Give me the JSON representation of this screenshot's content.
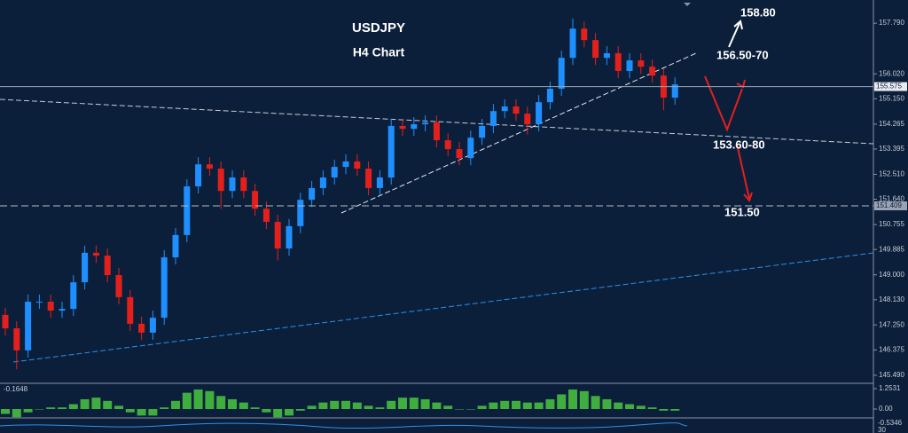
{
  "chart_data": [
    {
      "type": "candlestick",
      "title": "USDJPY",
      "subtitle": "H4 Chart",
      "annotations": [
        "158.80",
        "156.50-70",
        "153.60-80",
        "151.50"
      ],
      "open": [
        147.6,
        147.13,
        146.36,
        148.06,
        148.06,
        147.75,
        147.81,
        148.74,
        149.77,
        149.67,
        148.99,
        148.22,
        147.29,
        146.98,
        147.5,
        149.61,
        150.39,
        152.09,
        152.86,
        152.71,
        151.93,
        152.4,
        151.93,
        151.31,
        150.85,
        149.92,
        150.7,
        151.62,
        152.03,
        152.4,
        152.77,
        152.96,
        152.71,
        152.03,
        152.4,
        154.2,
        154.1,
        154.26,
        154.32,
        153.7,
        153.39,
        153.08,
        153.79,
        154.2,
        154.72,
        154.88,
        154.63,
        154.26,
        155.03,
        155.5,
        156.58,
        157.6,
        157.2,
        156.58,
        156.74,
        156.12,
        156.49,
        156.27,
        155.96,
        155.19
      ],
      "high": [
        147.85,
        147.38,
        148.31,
        148.31,
        148.31,
        148.06,
        148.99,
        150.02,
        150.02,
        149.92,
        149.24,
        148.47,
        147.54,
        147.75,
        149.86,
        150.64,
        152.34,
        153.11,
        153.11,
        152.96,
        152.65,
        152.65,
        152.18,
        151.56,
        151.1,
        150.95,
        151.87,
        152.28,
        152.65,
        153.02,
        153.21,
        153.21,
        152.96,
        152.65,
        154.45,
        154.45,
        154.51,
        154.57,
        154.57,
        153.95,
        153.64,
        154.04,
        154.45,
        154.97,
        155.13,
        155.13,
        154.88,
        155.28,
        155.75,
        156.83,
        157.95,
        157.85,
        157.45,
        156.99,
        156.99,
        156.74,
        156.74,
        156.52,
        156.21,
        155.9
      ],
      "low": [
        146.88,
        145.7,
        146.11,
        147.81,
        147.5,
        147.5,
        147.56,
        148.49,
        149.42,
        148.74,
        147.97,
        147.04,
        146.73,
        146.73,
        147.25,
        149.36,
        150.14,
        151.84,
        152.46,
        151.3,
        151.68,
        151.68,
        151.06,
        150.6,
        149.5,
        149.67,
        150.45,
        151.37,
        151.78,
        152.15,
        152.52,
        152.46,
        151.78,
        151.78,
        152.15,
        153.85,
        153.85,
        154.01,
        153.45,
        153.14,
        152.83,
        152.83,
        153.54,
        153.95,
        154.47,
        154.38,
        153.9,
        154.01,
        154.78,
        155.25,
        156.33,
        156.95,
        156.33,
        156.33,
        155.87,
        155.87,
        156.02,
        155.71,
        154.75,
        154.94
      ],
      "close": [
        147.13,
        146.36,
        148.06,
        148.06,
        147.75,
        147.81,
        148.74,
        149.77,
        149.67,
        148.99,
        148.22,
        147.29,
        146.98,
        147.5,
        149.61,
        150.39,
        152.09,
        152.86,
        152.71,
        151.93,
        152.4,
        151.93,
        151.31,
        150.85,
        149.92,
        150.7,
        151.62,
        152.03,
        152.4,
        152.77,
        152.96,
        152.71,
        152.03,
        152.4,
        154.2,
        154.1,
        154.26,
        154.32,
        153.7,
        153.39,
        153.08,
        153.79,
        154.2,
        154.72,
        154.88,
        154.63,
        154.26,
        155.03,
        155.5,
        156.58,
        157.6,
        157.2,
        156.58,
        156.74,
        156.12,
        156.49,
        156.27,
        155.96,
        155.19,
        155.65
      ],
      "up_color": "#1e8fff",
      "down_color": "#e3201b",
      "ylim": [
        145.21,
        158.6
      ],
      "yticks": [
        {
          "value": 157.79,
          "label": "157.790"
        },
        {
          "value": 156.02,
          "label": "156.020"
        },
        {
          "value": 155.15,
          "label": "155.150"
        },
        154.265,
        153.395,
        {
          "value": 152.51,
          "label": "152.510"
        },
        {
          "value": 151.64,
          "label": "151.640"
        },
        150.755,
        149.885,
        {
          "value": 149,
          "label": "149.000"
        },
        {
          "value": 148.13,
          "label": "148.130"
        },
        {
          "value": 147.25,
          "label": "147.250"
        },
        146.375,
        {
          "value": 145.49,
          "label": "145.490"
        }
      ],
      "price_lines": [
        155.575,
        151.409
      ]
    },
    {
      "type": "bar",
      "label": "-0.1648",
      "color": "#3fae3f",
      "values": [
        -0.3,
        -0.5,
        -0.2,
        0.0,
        0.1,
        0.1,
        0.3,
        0.6,
        0.7,
        0.5,
        0.2,
        -0.2,
        -0.4,
        -0.4,
        0.1,
        0.5,
        1.0,
        1.2,
        1.1,
        0.8,
        0.6,
        0.4,
        0.1,
        -0.2,
        -0.5,
        -0.4,
        -0.1,
        0.2,
        0.4,
        0.5,
        0.5,
        0.4,
        0.2,
        0.1,
        0.5,
        0.7,
        0.7,
        0.6,
        0.4,
        0.2,
        0.0,
        0.0,
        0.2,
        0.4,
        0.5,
        0.5,
        0.4,
        0.4,
        0.6,
        0.9,
        1.2,
        1.1,
        0.8,
        0.6,
        0.4,
        0.3,
        0.2,
        0.1,
        -0.1,
        -0.1
      ],
      "ylim": [
        -0.49,
        1.47
      ],
      "yticks": [
        1.2531,
        {
          "value": 0,
          "label": "0.00"
        }
      ],
      "lower_panel_labels": [
        "-0.5346",
        "30"
      ]
    }
  ]
}
